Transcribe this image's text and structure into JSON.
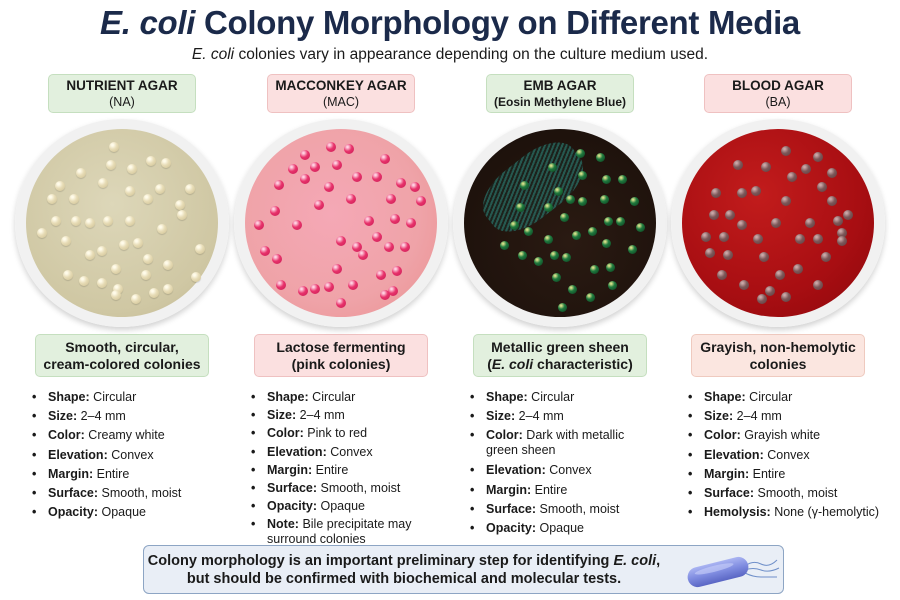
{
  "header": {
    "title_italic": "E. coli",
    "title_rest": " Colony Morphology on Different Media",
    "subtitle_italic": "E. coli",
    "subtitle_rest": " colonies vary in appearance depending on the culture medium used."
  },
  "media": [
    {
      "name": "NUTRIENT AGAR",
      "abbrev": "(NA)",
      "agar_color": "#cfc7a3",
      "colony_color": "#e7dcb6",
      "description_line1": "Smooth, circular,",
      "description_line2": "cream-colored colonies",
      "properties": [
        {
          "key": "Shape:",
          "value": "Circular"
        },
        {
          "key": "Size:",
          "value": "2–4 mm"
        },
        {
          "key": "Color:",
          "value": "Creamy white"
        },
        {
          "key": "Elevation:",
          "value": "Convex"
        },
        {
          "key": "Margin:",
          "value": "Entire"
        },
        {
          "key": "Surface:",
          "value": "Smooth, moist"
        },
        {
          "key": "Opacity:",
          "value": "Opaque"
        }
      ]
    },
    {
      "name": "MACCONKEY AGAR",
      "abbrev": "(MAC)",
      "agar_color": "#efa3a8",
      "colony_color": "#e8336b",
      "description_line1": "Lactose fermenting",
      "description_line2": "(pink colonies)",
      "properties": [
        {
          "key": "Shape:",
          "value": "Circular"
        },
        {
          "key": "Size:",
          "value": "2–4 mm"
        },
        {
          "key": "Color:",
          "value": "Pink to red"
        },
        {
          "key": "Elevation:",
          "value": "Convex"
        },
        {
          "key": "Margin:",
          "value": "Entire"
        },
        {
          "key": "Surface:",
          "value": "Smooth, moist"
        },
        {
          "key": "Opacity:",
          "value": "Opaque"
        },
        {
          "key": "Note:",
          "value": "Bile precipitate may surround colonies"
        }
      ]
    },
    {
      "name": "EMB AGAR",
      "abbrev": "(Eosin Methylene Blue)",
      "agar_color": "#1e120c",
      "colony_color": "#1f7a3f",
      "description_line1": "Metallic green sheen",
      "description_line2_italic": "E. coli",
      "description_line2_rest": " characteristic)",
      "description_line2_open": "(",
      "properties": [
        {
          "key": "Shape:",
          "value": "Circular"
        },
        {
          "key": "Size:",
          "value": "2–4 mm"
        },
        {
          "key": "Color:",
          "value": "Dark with metallic green sheen"
        },
        {
          "key": "Elevation:",
          "value": "Convex"
        },
        {
          "key": "Margin:",
          "value": "Entire"
        },
        {
          "key": "Surface:",
          "value": "Smooth, moist"
        },
        {
          "key": "Opacity:",
          "value": "Opaque"
        }
      ]
    },
    {
      "name": "BLOOD AGAR",
      "abbrev": "(BA)",
      "agar_color": "#a80e12",
      "colony_color": "#7d5859",
      "description_line1": "Grayish, non-hemolytic",
      "description_line2": "colonies",
      "properties": [
        {
          "key": "Shape:",
          "value": "Circular"
        },
        {
          "key": "Size:",
          "value": "2–4 mm"
        },
        {
          "key": "Color:",
          "value": "Grayish white"
        },
        {
          "key": "Elevation:",
          "value": "Convex"
        },
        {
          "key": "Margin:",
          "value": "Entire"
        },
        {
          "key": "Surface:",
          "value": "Smooth, moist"
        },
        {
          "key": "Hemolysis:",
          "value": "None (γ-hemolytic)"
        }
      ]
    }
  ],
  "footer": {
    "line1_start": "Colony morphology is an important preliminary step for identifying ",
    "line1_italic": "E. coli",
    "line1_end": ",",
    "line2": "but should be confirmed with biochemical and molecular tests.",
    "icon": "bacterium-icon"
  },
  "colors": {
    "title": "#1b2a4a",
    "green_box": "#e2f0de",
    "pink_box": "#fbe0e0",
    "peach_box": "#fbe6e0",
    "footer_bg": "#e9eef6",
    "footer_border": "#8da5c4"
  }
}
